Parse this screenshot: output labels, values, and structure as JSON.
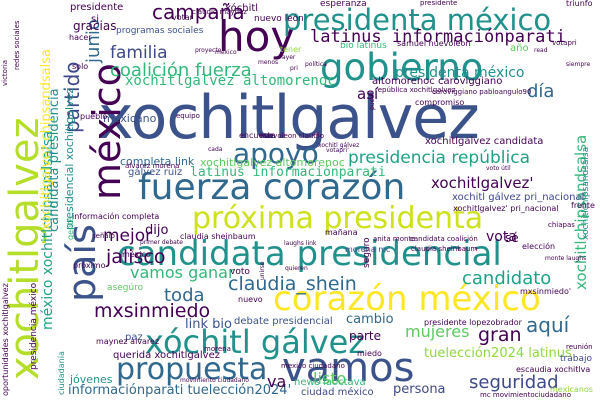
{
  "palette": {
    "dark_purple": "#440154",
    "indigo": "#3b528b",
    "blue": "#31688e",
    "teal": "#21918c",
    "green": "#35b779",
    "lime": "#90d743",
    "yellow": "#fde725"
  },
  "words": [
    {
      "text": "xochitlgalvez",
      "color": "#3b528b"
    },
    {
      "text": "hoy",
      "color": "#440154"
    },
    {
      "text": "presidenta méxico",
      "color": "#21918c"
    },
    {
      "text": "gobierno",
      "color": "#21918c"
    },
    {
      "text": "fuerza corazón",
      "color": "#31688e"
    },
    {
      "text": "próxima presidenta",
      "color": "#cde11d"
    },
    {
      "text": "candidata presidencial",
      "color": "#21918c"
    },
    {
      "text": "corazón méxico",
      "color": "#fde725"
    },
    {
      "text": "apoyo",
      "color": "#31688e"
    },
    {
      "text": "vamos",
      "color": "#3b528b"
    },
    {
      "text": "xóchitl gálvez",
      "color": "#21918c"
    },
    {
      "text": "propuesta",
      "color": "#31688e"
    },
    {
      "text": "país",
      "color": "#3b528b"
    },
    {
      "text": "méxico",
      "color": "#440154"
    },
    {
      "text": "xochitlgalvez",
      "color": "#b5de2b"
    },
    {
      "text": "campaña",
      "color": "#440154"
    },
    {
      "text": "latinus informaciónparati",
      "color": "#440154"
    },
    {
      "text": "familia",
      "color": "#3e4989"
    },
    {
      "text": "partido",
      "color": "#3e4989"
    },
    {
      "text": "coalición fuerza",
      "color": "#35b779"
    },
    {
      "text": "xochitlgalvez altomorenoc",
      "color": "#35b779"
    },
    {
      "text": "presidencia república",
      "color": "#1fa187"
    },
    {
      "text": "candidato",
      "color": "#1fa187"
    },
    {
      "text": "mejor",
      "color": "#440154"
    },
    {
      "text": "jalisco",
      "color": "#440154"
    },
    {
      "text": "vamos ganar",
      "color": "#35b779"
    },
    {
      "text": "claudia_shein",
      "color": "#31688e"
    },
    {
      "text": "toda",
      "color": "#31688e"
    },
    {
      "text": "mxsinmiedo",
      "color": "#440154"
    },
    {
      "text": "aquí",
      "color": "#31688e"
    },
    {
      "text": "gran",
      "color": "#440154"
    },
    {
      "text": "mujeres",
      "color": "#5ec962"
    },
    {
      "text": "seguridad",
      "color": "#3e4989"
    },
    {
      "text": "informaciónparati tuelección2024'",
      "color": "#31688e"
    },
    {
      "text": "xochitlgalvez'",
      "color": "#440154"
    },
    {
      "text": "latinus informaciónparati",
      "color": "#35b779"
    },
    {
      "text": "xochitlgalvez altomorenoc",
      "color": "#5ec962"
    },
    {
      "text": "dijo",
      "color": "#440154"
    },
    {
      "text": "link bio",
      "color": "#3b528b"
    },
    {
      "text": "listo",
      "color": "#5ec962"
    },
    {
      "text": "día",
      "color": "#31688e"
    },
    {
      "text": "junio",
      "color": "#31688e"
    },
    {
      "text": "así",
      "color": "#440154"
    },
    {
      "text": "presidenta méxico",
      "color": "#21918c"
    },
    {
      "text": "vota",
      "color": "#440154"
    },
    {
      "text": "tuelección2024 latinus",
      "color": "#90d743"
    },
    {
      "text": "persona",
      "color": "#3e4989"
    },
    {
      "text": "va",
      "color": "#440154"
    },
    {
      "text": "news laoctava",
      "color": "#35b779"
    },
    {
      "text": "xochitlchipsandsalsa",
      "color": "#35b779"
    },
    {
      "text": "méxico xochitlchipsandsalsa",
      "color": "#1fa187"
    },
    {
      "text": "presidencial xochitlgalvez",
      "color": "#21918c"
    },
    {
      "text": "candidata presidencia",
      "color": "#21918c"
    },
    {
      "text": "xochitlgalvez chipsandsalsa",
      "color": "#fde725"
    },
    {
      "text": "mexicano",
      "color": "#3b528b"
    },
    {
      "text": "completa link",
      "color": "#31688e"
    },
    {
      "text": "cambio",
      "color": "#31688e"
    },
    {
      "text": "parte",
      "color": "#440154"
    },
    {
      "text": "debate presidencial",
      "color": "#3b528b"
    },
    {
      "text": "querida xochitlgalvez",
      "color": "#440154"
    },
    {
      "text": "ciudad méxico",
      "color": "#3e4989"
    },
    {
      "text": "jóvenes",
      "color": "#21918c"
    },
    {
      "text": "presidente",
      "color": "#440154"
    },
    {
      "text": "gracias",
      "color": "#440154"
    },
    {
      "text": "programas sociales",
      "color": "#3b528b"
    },
    {
      "text": "próximo",
      "color": "#440154"
    },
    {
      "text": "xóchitl",
      "color": "#440154"
    },
    {
      "text": "esperanza",
      "color": "#440154"
    },
    {
      "text": "nuevo león",
      "color": "#440154"
    },
    {
      "text": "año",
      "color": "#5ec962"
    },
    {
      "text": "bio latinus",
      "color": "#35b779"
    },
    {
      "text": "xochitlchipsandsalsa",
      "color": "#21918c"
    },
    {
      "text": "gálvez ruiz",
      "color": "#3b528b"
    },
    {
      "text": "paz",
      "color": "#3b528b"
    },
    {
      "text": "maynez alvarez",
      "color": "#440154"
    },
    {
      "text": "trabajo",
      "color": "#3e4989"
    },
    {
      "text": "escaudia xochitlva",
      "color": "#440154"
    },
    {
      "text": "mexicanos",
      "color": "#90d743"
    },
    {
      "text": "ciudadanía",
      "color": "#21918c"
    },
    {
      "text": "oportunidades xochitlgalvez",
      "color": "#440154"
    },
    {
      "text": "presidencia méxico",
      "color": "#440154"
    },
    {
      "text": "información completa",
      "color": "#440154"
    },
    {
      "text": "altomorenoc caroviggiano",
      "color": "#440154"
    },
    {
      "text": "xochitlgalvez candidata",
      "color": "#440154"
    },
    {
      "text": "xochitl gálvez pri_nacional",
      "color": "#3e4989"
    },
    {
      "text": "xochitlgalvez' pri_nacional",
      "color": "#440154"
    },
    {
      "text": "claudia sheinbaum",
      "color": "#440154"
    },
    {
      "text": "presidente lopezobrador",
      "color": "#440154"
    },
    {
      "text": "mxsinmiedo'",
      "color": "#440154"
    },
    {
      "text": "morena mc",
      "color": "#3b528b"
    },
    {
      "text": "anita monte",
      "color": "#440154"
    },
    {
      "text": "candidata coalición",
      "color": "#440154"
    },
    {
      "text": "sé",
      "color": "#440154"
    },
    {
      "text": "seguro",
      "color": "#440154"
    },
    {
      "text": "elección",
      "color": "#440154"
    },
    {
      "text": "asegúro",
      "color": "#5ec962"
    },
    {
      "text": "voto",
      "color": "#440154"
    },
    {
      "text": "nuevo",
      "color": "#440154"
    },
    {
      "text": "miedo",
      "color": "#440154"
    },
    {
      "text": "compromiso",
      "color": "#440154"
    },
    {
      "text": "tener",
      "color": "#90d743"
    },
    {
      "text": "triunfo",
      "color": "#440154"
    },
    {
      "text": "votar",
      "color": "#440154"
    },
    {
      "text": "si",
      "color": "#440154"
    },
    {
      "text": "hacer",
      "color": "#440154"
    },
    {
      "text": "solo",
      "color": "#440154"
    },
    {
      "text": "equipo",
      "color": "#440154"
    },
    {
      "text": "encuesta",
      "color": "#440154"
    },
    {
      "text": "mañana",
      "color": "#440154"
    },
    {
      "text": "méxico",
      "color": "#440154"
    },
    {
      "text": "pueblo",
      "color": "#440154"
    },
    {
      "text": "victoria",
      "color": "#440154"
    },
    {
      "text": "samuel nuevoleon",
      "color": "#440154"
    },
    {
      "text": "presidente",
      "color": "#440154"
    },
    {
      "text": "república xochitlgalvez",
      "color": "#440154"
    },
    {
      "text": "caroviggiano pabloangulo90",
      "color": "#440154"
    },
    {
      "text": "movimiento ciudadano",
      "color": "#440154"
    },
    {
      "text": "mc movimientociudadano",
      "color": "#440154"
    },
    {
      "text": "nuevoleon claudio",
      "color": "#440154"
    },
    {
      "text": "frente",
      "color": "#440154"
    },
    {
      "text": "chiapas",
      "color": "#440154"
    },
    {
      "text": "señaló",
      "color": "#440154"
    },
    {
      "text": "primer debate",
      "color": "#440154"
    },
    {
      "text": "claudia sheinbaum",
      "color": "#440154"
    },
    {
      "text": "mexico ciudadano",
      "color": "#440154"
    },
    {
      "text": "reunión",
      "color": "#440154"
    },
    {
      "text": "morena",
      "color": "#440154"
    },
    {
      "text": "gente",
      "color": "#35b779"
    },
    {
      "text": "alvarez morena",
      "color": "#440154"
    },
    {
      "text": "claudio maynez",
      "color": "#440154"
    },
    {
      "text": "voto útil",
      "color": "#440154"
    },
    {
      "text": "laughs link",
      "color": "#440154"
    },
    {
      "text": "monte laughs",
      "color": "#440154"
    },
    {
      "text": "redes sociales",
      "color": "#440154"
    },
    {
      "text": "unirse",
      "color": "#440154"
    },
    {
      "text": "quieren",
      "color": "#440154"
    },
    {
      "text": "votapri",
      "color": "#440154"
    },
    {
      "text": "mexico",
      "color": "#440154"
    },
    {
      "text": "proyecto",
      "color": "#440154"
    },
    {
      "text": "cada",
      "color": "#440154"
    },
    {
      "text": "puede",
      "color": "#440154"
    },
    {
      "text": "read",
      "color": "#440154"
    },
    {
      "text": "siempre",
      "color": "#440154"
    },
    {
      "text": "pri",
      "color": "#440154"
    },
    {
      "text": "xochitl gálvez",
      "color": "#440154"
    },
    {
      "text": "votapri'",
      "color": "#440154"
    },
    {
      "text": "ayer",
      "color": "#440154"
    },
    {
      "text": "menos",
      "color": "#440154"
    },
    {
      "text": "política",
      "color": "#440154"
    }
  ]
}
